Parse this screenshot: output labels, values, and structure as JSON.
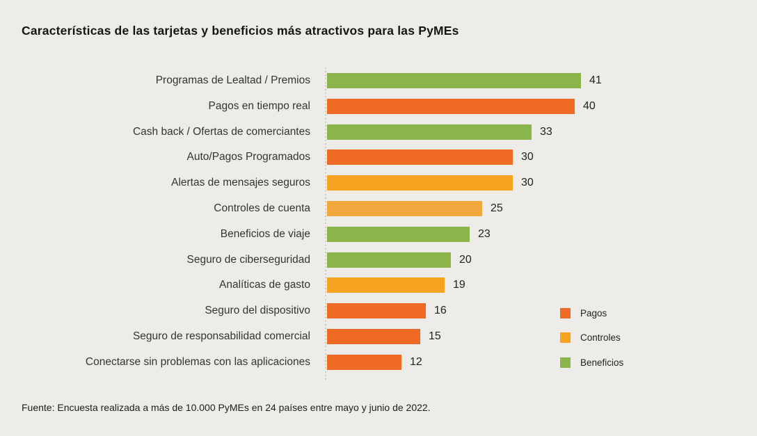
{
  "page": {
    "title": "Características de las tarjetas y beneficios más atractivos para las PyMEs",
    "source": "Fuente: Encuesta realizada a más de 10.000 PyMEs en 24 países entre mayo y junio de 2022."
  },
  "colors": {
    "background": "#EDECE9",
    "pagos": "#EE6A25",
    "controles": "#F7A320",
    "controles_light": "#F1A73E",
    "beneficios": "#8BB44A",
    "axis_dotted": "#C6C4BF",
    "label_text": "#35342F"
  },
  "chart_data": {
    "type": "bar",
    "orientation": "horizontal",
    "title": "Características de las tarjetas y beneficios más atractivos para las PyMEs",
    "categories": [
      "Programas de Lealtad / Premios",
      "Pagos en tiempo real",
      "Cash back / Ofertas de comerciantes",
      "Auto/Pagos Programados",
      "Alertas de mensajes seguros",
      "Controles de cuenta",
      "Beneficios de viaje",
      "Seguro de ciberseguridad",
      "Analíticas de gasto",
      "Seguro del dispositivo",
      "Seguro de responsabilidad comercial",
      "Conectarse sin problemas con las aplicaciones"
    ],
    "values": [
      41,
      40,
      33,
      30,
      30,
      25,
      23,
      20,
      19,
      16,
      15,
      12
    ],
    "groups": [
      "Beneficios",
      "Pagos",
      "Beneficios",
      "Pagos",
      "Controles",
      "Controles",
      "Beneficios",
      "Beneficios",
      "Controles",
      "Pagos",
      "Pagos",
      "Pagos"
    ],
    "bar_colors": [
      "#8BB44A",
      "#EE6A25",
      "#8BB44A",
      "#EE6A25",
      "#F7A320",
      "#F1A73E",
      "#8BB44A",
      "#8BB44A",
      "#F7A320",
      "#EE6A25",
      "#EE6A25",
      "#EE6A25"
    ],
    "value_labels_shown": true,
    "xlim": [
      0,
      45
    ],
    "grid": false,
    "legend_position": "right-bottom",
    "legend": [
      {
        "label": "Pagos",
        "color": "#EE6A25"
      },
      {
        "label": "Controles",
        "color": "#F7A320"
      },
      {
        "label": "Beneficios",
        "color": "#8BB44A"
      }
    ],
    "source": "Fuente: Encuesta realizada a más de 10.000 PyMEs en 24 países entre mayo y junio de 2022."
  }
}
